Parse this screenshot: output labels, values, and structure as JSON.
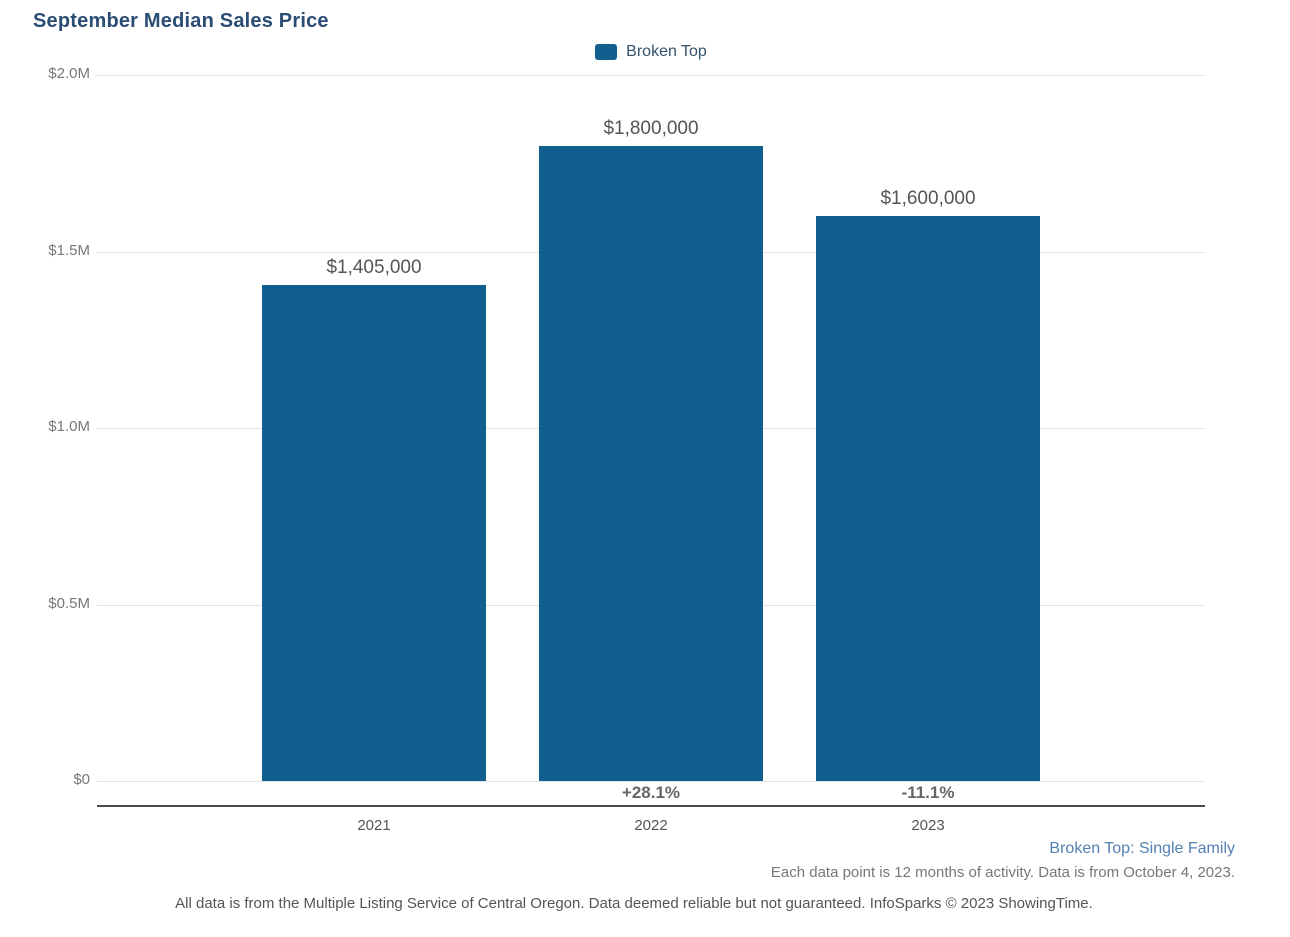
{
  "chart_data": {
    "type": "bar",
    "title": "September Median Sales Price",
    "legend_label": "Broken Top",
    "legend_position": "top-center",
    "categories": [
      "2021",
      "2022",
      "2023"
    ],
    "values": [
      1405000,
      1800000,
      1600000
    ],
    "value_labels": [
      "$1,405,000",
      "$1,800,000",
      "$1,600,000"
    ],
    "pct_change": [
      "",
      "+28.1%",
      "-11.1%"
    ],
    "y_ticks": [
      {
        "label": "$2.0M",
        "value": 2000000
      },
      {
        "label": "$1.5M",
        "value": 1500000
      },
      {
        "label": "$1.0M",
        "value": 1000000
      },
      {
        "label": "$0.5M",
        "value": 500000
      },
      {
        "label": "$0",
        "value": 0
      }
    ],
    "ylim": [
      0,
      2000000
    ],
    "grid": true,
    "colors": {
      "bar": "#115F8F",
      "title": "#2C4D73",
      "legend_text": "#33526B",
      "tick_text": "#777777",
      "value_text": "#555555",
      "pct_text": "#666666",
      "category_text": "#555555",
      "gridline": "#e2e2e2",
      "axis_line": "#4a4a4a"
    }
  },
  "footnotes": {
    "series": "Broken Top: Single Family",
    "series_color": "#5580B4",
    "data_point": "Each data point is 12 months of activity. Data is from October 4, 2023.",
    "disclaimer": "All data is from the Multiple Listing Service of Central Oregon. Data deemed reliable but not guaranteed. InfoSparks © 2023 ShowingTime."
  }
}
